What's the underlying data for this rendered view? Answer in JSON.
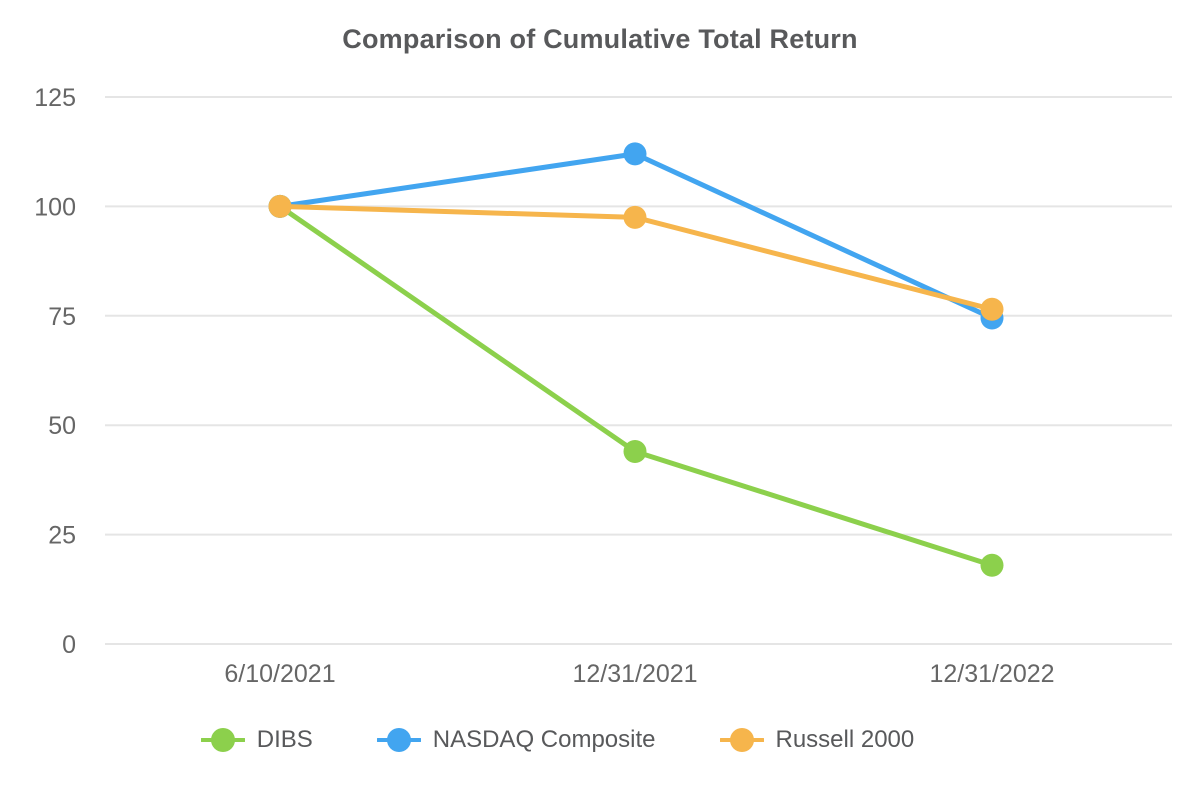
{
  "chart_data": {
    "type": "line",
    "title": "Comparison of Cumulative Total Return",
    "categories": [
      "6/10/2021",
      "12/31/2021",
      "12/31/2022"
    ],
    "series": [
      {
        "name": "DIBS",
        "color": "#8cd04c",
        "values": [
          100,
          44,
          18
        ]
      },
      {
        "name": "NASDAQ Composite",
        "color": "#42a5f0",
        "values": [
          100,
          112,
          74.5
        ]
      },
      {
        "name": "Russell 2000",
        "color": "#f6b54c",
        "values": [
          100,
          97.5,
          76.5
        ]
      }
    ],
    "yticks": [
      0,
      25,
      50,
      75,
      100,
      125
    ],
    "ylim": [
      0,
      125
    ],
    "grid": true,
    "legend_position": "bottom",
    "xlabel": "",
    "ylabel": "",
    "colors": {
      "gridline": "#e5e5e5",
      "axis_text": "#666666",
      "title_text": "#58595b",
      "background": "#ffffff"
    }
  }
}
